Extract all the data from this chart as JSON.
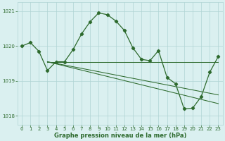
{
  "line1_x": [
    0,
    1,
    2,
    3,
    4,
    5,
    6,
    7,
    8,
    9,
    10,
    11,
    12,
    13,
    14,
    15,
    16,
    17,
    18,
    19,
    20,
    21,
    22,
    23
  ],
  "line1_y": [
    1020.0,
    1020.1,
    1019.85,
    1019.3,
    1019.55,
    1019.55,
    1019.9,
    1020.35,
    1020.7,
    1020.95,
    1020.9,
    1020.72,
    1020.45,
    1019.95,
    1019.62,
    1019.58,
    1019.87,
    1019.1,
    1018.92,
    1018.2,
    1018.22,
    1018.55,
    1019.25,
    1019.7
  ],
  "line2_x": [
    3,
    23
  ],
  "line2_y": [
    1019.55,
    1019.55
  ],
  "line3_x": [
    3,
    23
  ],
  "line3_y": [
    1019.55,
    1018.35
  ],
  "line4_x": [
    3,
    23
  ],
  "line4_y": [
    1019.55,
    1018.6
  ],
  "color": "#2d6a2d",
  "bg_color": "#daf0f0",
  "grid_color": "#b0d4d4",
  "xlabel": "Graphe pression niveau de la mer (hPa)",
  "ylim": [
    1017.75,
    1021.25
  ],
  "xlim": [
    -0.5,
    23.5
  ],
  "yticks": [
    1018,
    1019,
    1020,
    1021
  ],
  "xticks": [
    0,
    1,
    2,
    3,
    4,
    5,
    6,
    7,
    8,
    9,
    10,
    11,
    12,
    13,
    14,
    15,
    16,
    17,
    18,
    19,
    20,
    21,
    22,
    23
  ]
}
